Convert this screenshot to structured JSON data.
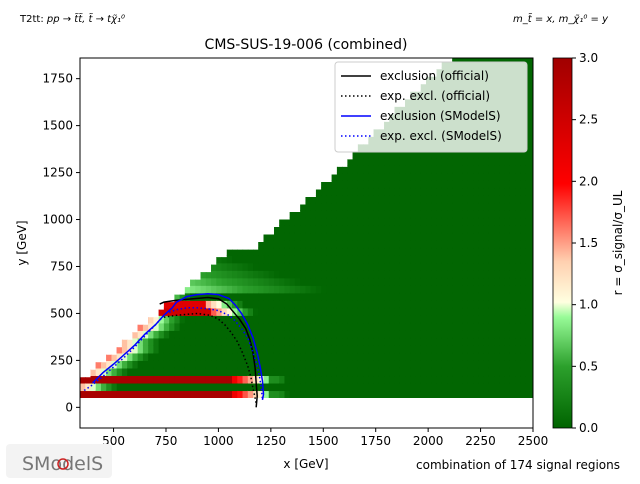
{
  "header": {
    "process_prefix": "T2tt: ",
    "process_formula": "pp → t̃t̃, t̃ → tχ̃₁⁰",
    "mass_legend": "m_t̃ = x, m_χ̃₁⁰ = y"
  },
  "footer": {
    "regions_note": "combination of 174 signal regions",
    "logo_text": "SModelS"
  },
  "colors": {
    "official": "#000000",
    "smodels": "#0000ff",
    "background": "#ffffff"
  },
  "chart_data": {
    "type": "heatmap",
    "title": "CMS-SUS-19-006 (combined)",
    "xlabel": "x [GeV]",
    "ylabel": "y [GeV]",
    "xlim": [
      340,
      2500
    ],
    "ylim": [
      -110,
      1860
    ],
    "xticks": [
      500,
      750,
      1000,
      1250,
      1500,
      1750,
      2000,
      2250,
      2500
    ],
    "yticks": [
      0,
      250,
      500,
      750,
      1000,
      1250,
      1500,
      1750
    ],
    "grid": false,
    "legend_position": "top-right",
    "colorbar": {
      "label": "r = σ_signal/σ_UL",
      "range": [
        0,
        3
      ],
      "ticks": [
        0.0,
        0.5,
        1.0,
        1.5,
        2.0,
        2.5,
        3.0
      ],
      "colormap": [
        {
          "stop": 0.0,
          "color": "#006400"
        },
        {
          "stop": 0.166,
          "color": "#2ca02c"
        },
        {
          "stop": 0.3,
          "color": "#98fb98"
        },
        {
          "stop": 0.34,
          "color": "#ffffe0"
        },
        {
          "stop": 0.45,
          "color": "#ffd0b0"
        },
        {
          "stop": 0.66,
          "color": "#ff0000"
        },
        {
          "stop": 1.0,
          "color": "#a00000"
        }
      ]
    },
    "region": {
      "y_min": 50,
      "diagonal_y_max": [
        [
          340,
          130
        ],
        [
          700,
          490
        ],
        [
          1040,
          810
        ],
        [
          1130,
          800
        ],
        [
          1200,
          880
        ],
        [
          1480,
          1150
        ],
        [
          1650,
          1350
        ],
        [
          2120,
          1870
        ]
      ]
    },
    "series": [
      {
        "name": "exclusion (official)",
        "style": "solid",
        "color": "#000000",
        "x": [
          720,
          740,
          800,
          900,
          950,
          1000,
          1040,
          1070,
          1100,
          1130,
          1150,
          1165,
          1175,
          1180,
          1185,
          1180
        ],
        "y": [
          550,
          560,
          570,
          580,
          585,
          578,
          550,
          510,
          470,
          420,
          360,
          290,
          210,
          130,
          60,
          0
        ]
      },
      {
        "name": "exp. excl. (official)",
        "style": "dotted",
        "color": "#000000",
        "x": [
          740,
          800,
          900,
          960,
          1000,
          1030,
          1060,
          1090,
          1115,
          1140,
          1155,
          1165,
          1175,
          1180
        ],
        "y": [
          480,
          490,
          500,
          490,
          470,
          440,
          400,
          350,
          290,
          220,
          160,
          100,
          50,
          20
        ]
      },
      {
        "name": "exclusion (SModelS)",
        "style": "solid",
        "color": "#0000ff",
        "x": [
          400,
          450,
          500,
          550,
          600,
          650,
          700,
          740,
          780,
          800,
          850,
          900,
          950,
          1000,
          1050,
          1080,
          1110,
          1140,
          1165,
          1185,
          1200,
          1210,
          1215,
          1210
        ],
        "y": [
          130,
          185,
          230,
          280,
          330,
          390,
          440,
          490,
          530,
          560,
          590,
          600,
          605,
          600,
          580,
          545,
          500,
          440,
          370,
          290,
          210,
          140,
          70,
          40
        ]
      },
      {
        "name": "exp. excl. (SModelS)",
        "style": "dotted",
        "color": "#0000ff",
        "x": [
          360,
          400,
          450,
          500,
          550,
          600,
          650,
          700,
          750,
          800,
          850,
          900,
          950,
          1000,
          1050,
          1080,
          1110,
          1140,
          1160,
          1180,
          1195,
          1205,
          1210
        ],
        "y": [
          90,
          120,
          165,
          215,
          265,
          320,
          380,
          440,
          500,
          520,
          530,
          530,
          525,
          515,
          490,
          460,
          420,
          370,
          310,
          240,
          170,
          100,
          40
        ]
      }
    ]
  }
}
